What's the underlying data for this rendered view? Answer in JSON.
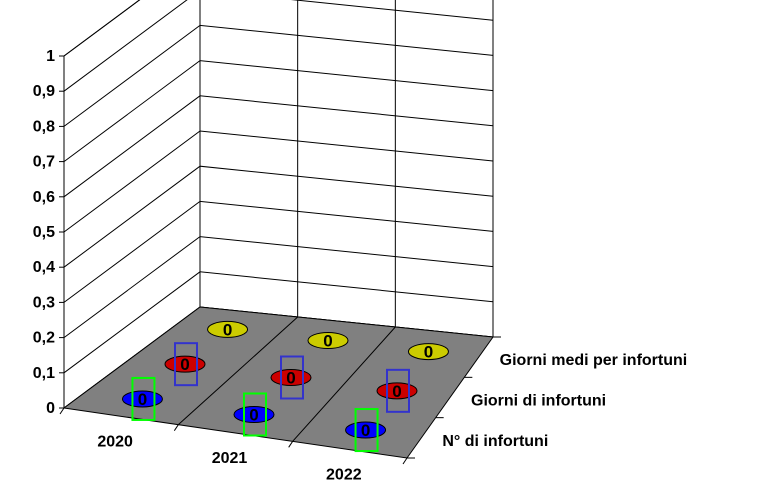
{
  "chart_data": {
    "type": "bar",
    "title": "",
    "categories": [
      "2020",
      "2021",
      "2022"
    ],
    "yticks": [
      "0",
      "0,1",
      "0,2",
      "0,3",
      "0,4",
      "0,5",
      "0,6",
      "0,7",
      "0,8",
      "0,9",
      "1"
    ],
    "ylim": [
      0,
      1
    ],
    "grid": true,
    "series": [
      {
        "name": "N° di infortuni",
        "values": [
          0,
          0,
          0
        ],
        "labels": [
          "0",
          "0",
          "0"
        ],
        "color": "#0000ff"
      },
      {
        "name": "Giorni di infortuni",
        "values": [
          0,
          0,
          0
        ],
        "labels": [
          "0",
          "0",
          "0"
        ],
        "color": "#cc0000"
      },
      {
        "name": "Giorni medi per infortuni",
        "values": [
          0,
          0,
          0
        ],
        "labels": [
          "0",
          "0",
          "0"
        ],
        "color": "#cccc00"
      }
    ],
    "floor_color": "#808080",
    "label_box_colors": [
      "#00ff00",
      "#3333cc"
    ]
  }
}
